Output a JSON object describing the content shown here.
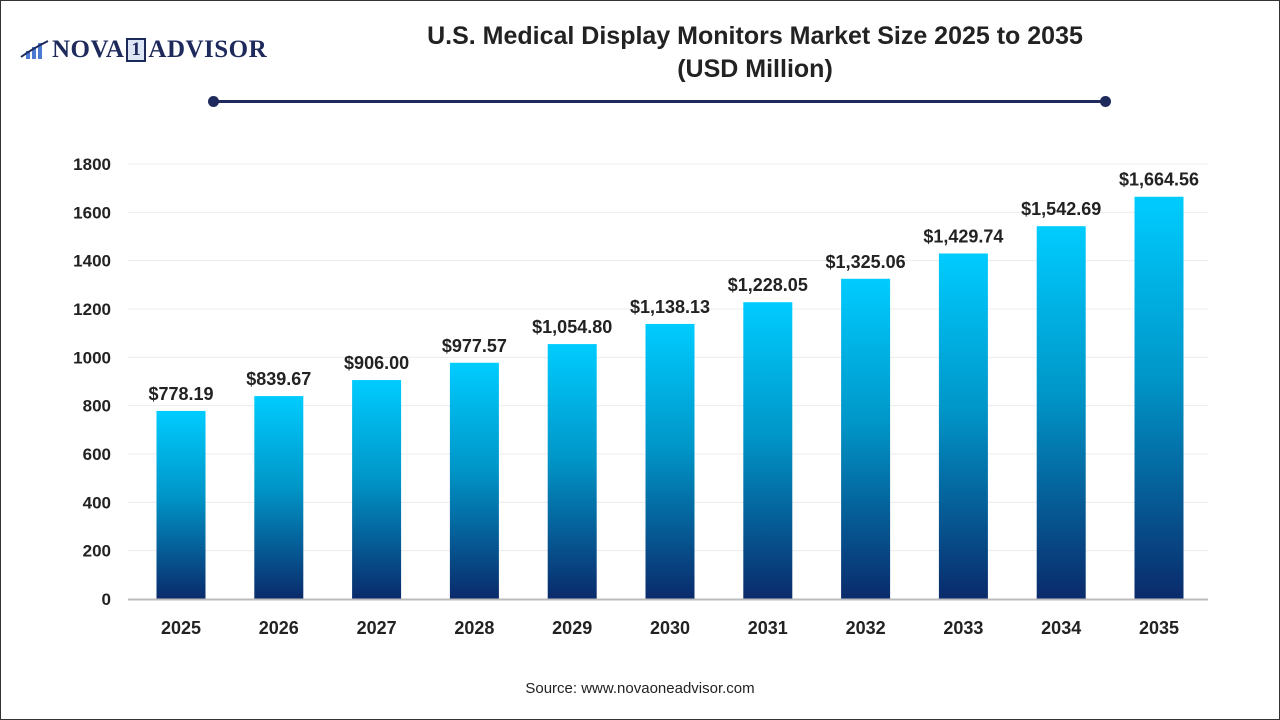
{
  "logo": {
    "text_left": "NOVA",
    "text_mid": "1",
    "text_right": "ADVISOR"
  },
  "source": "Source: www.novaoneadvisor.com",
  "colors": {
    "bar_top": "#00ccff",
    "bar_bottom": "#0a2a6b",
    "accent": "#1f2a5c"
  },
  "chart_data": {
    "type": "bar",
    "title": "U.S. Medical Display Monitors Market  Size 2025 to 2035",
    "subtitle": "(USD Million)",
    "categories": [
      "2025",
      "2026",
      "2027",
      "2028",
      "2029",
      "2030",
      "2031",
      "2032",
      "2033",
      "2034",
      "2035"
    ],
    "values": [
      778.19,
      839.67,
      906.0,
      977.57,
      1054.8,
      1138.13,
      1228.05,
      1325.06,
      1429.74,
      1542.69,
      1664.56
    ],
    "data_labels": [
      "$778.19",
      "$839.67",
      "$906.00",
      "$977.57",
      "$1,054.80",
      "$1,138.13",
      "$1,228.05",
      "$1,325.06",
      "$1,429.74",
      "$1,542.69",
      "$1,664.56"
    ],
    "yticks": [
      "0",
      "200",
      "400",
      "600",
      "800",
      "1000",
      "1200",
      "1400",
      "1600",
      "1800"
    ],
    "ylim": [
      0,
      1800
    ],
    "grid": true,
    "legend": "none"
  }
}
